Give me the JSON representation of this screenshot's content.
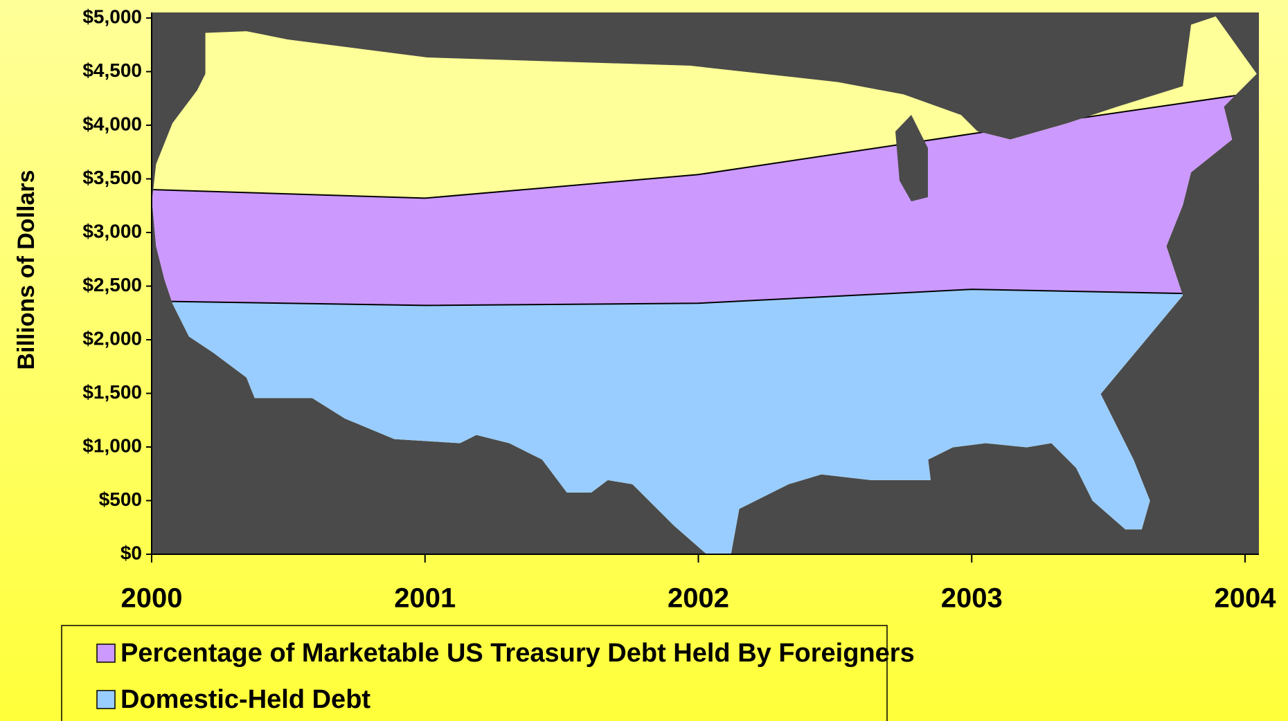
{
  "chart_data": {
    "type": "area",
    "y_axis_label": "Billions of Dollars",
    "x": [
      2000,
      2001,
      2002,
      2003,
      2004
    ],
    "xlim": [
      2000,
      2004
    ],
    "xticks": [
      2000,
      2001,
      2002,
      2003,
      2004
    ],
    "ylim": [
      0,
      5000
    ],
    "yticks": [
      {
        "value": 0,
        "label": "$0"
      },
      {
        "value": 500,
        "label": "$500"
      },
      {
        "value": 1000,
        "label": "$1,000"
      },
      {
        "value": 1500,
        "label": "$1,500"
      },
      {
        "value": 2000,
        "label": "$2,000"
      },
      {
        "value": 2500,
        "label": "$2,500"
      },
      {
        "value": 3000,
        "label": "$3,000"
      },
      {
        "value": 3500,
        "label": "$3,500"
      },
      {
        "value": 4000,
        "label": "$4,000"
      },
      {
        "value": 4500,
        "label": "$4,500"
      },
      {
        "value": 5000,
        "label": "$5,000"
      }
    ],
    "stacked": true,
    "series": [
      {
        "name": "Domestic-Held Debt",
        "color": "#99ccff",
        "values": [
          2360,
          2320,
          2340,
          2470,
          2420
        ]
      },
      {
        "name": "Percentage of Marketable US Treasury Debt Held By Foreigners",
        "color": "#cc99ff",
        "values": [
          1040,
          1000,
          1200,
          1450,
          1870
        ]
      }
    ]
  }
}
